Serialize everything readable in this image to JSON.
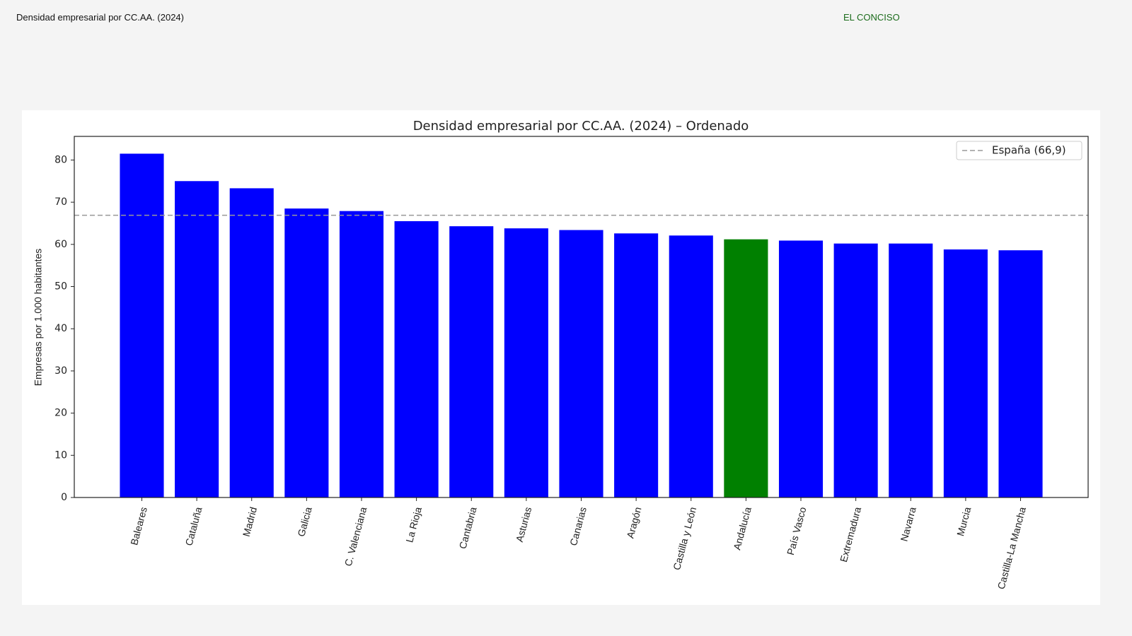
{
  "header": {
    "title": "Densidad empresarial por CC.AA. (2024)",
    "brand": "EL CONCISO"
  },
  "chart_data": {
    "type": "bar",
    "title": "Densidad empresarial por CC.AA. (2024) – Ordenado",
    "y_label": "Empresas por 1.000 habitantes",
    "categories": [
      "Baleares",
      "Cataluña",
      "Madrid",
      "Galicia",
      "C. Valenciana",
      "La Rioja",
      "Cantabria",
      "Asturias",
      "Canarias",
      "Aragón",
      "Castilla y León",
      "Andalucía",
      "País Vasco",
      "Extremadura",
      "Navarra",
      "Murcia",
      "Castilla-La Mancha"
    ],
    "values": [
      81.5,
      75.0,
      73.3,
      68.5,
      67.9,
      65.5,
      64.3,
      63.8,
      63.4,
      62.6,
      62.1,
      61.2,
      60.9,
      60.2,
      60.2,
      58.8,
      58.6
    ],
    "colors": [
      "#0000ff",
      "#0000ff",
      "#0000ff",
      "#0000ff",
      "#0000ff",
      "#0000ff",
      "#0000ff",
      "#0000ff",
      "#0000ff",
      "#0000ff",
      "#0000ff",
      "#008000",
      "#0000ff",
      "#0000ff",
      "#0000ff",
      "#0000ff",
      "#0000ff"
    ],
    "reference": {
      "value": 66.9,
      "label": "España (66,9)",
      "color": "#999999"
    },
    "ylim": [
      0,
      85.6
    ],
    "yticks": [
      0,
      10,
      20,
      30,
      40,
      50,
      60,
      70,
      80
    ],
    "legend": "upper right"
  }
}
